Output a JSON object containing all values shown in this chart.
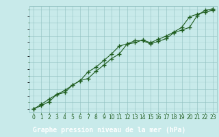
{
  "title": "Graphe pression niveau de la mer (hPa)",
  "background_color": "#c8eaea",
  "plot_bg_color": "#c8eaea",
  "footer_bg_color": "#2d6b2d",
  "footer_text_color": "#ffffff",
  "line_color": "#1e5c1e",
  "marker": "+",
  "markersize": 4,
  "markeredgewidth": 1.0,
  "linewidth": 0.8,
  "xlim": [
    -0.5,
    23.5
  ],
  "ylim": [
    1022.5,
    1038.5
  ],
  "xticks": [
    0,
    1,
    2,
    3,
    4,
    5,
    6,
    7,
    8,
    9,
    10,
    11,
    12,
    13,
    14,
    15,
    16,
    17,
    18,
    19,
    20,
    21,
    22,
    23
  ],
  "yticks": [
    1023,
    1025,
    1027,
    1029,
    1031,
    1033,
    1035,
    1037
  ],
  "series1": [
    1023.0,
    1023.5,
    1024.1,
    1025.2,
    1025.5,
    1026.6,
    1027.3,
    1027.6,
    1028.7,
    1029.6,
    1030.6,
    1031.3,
    1032.8,
    1033.3,
    1033.3,
    1032.8,
    1033.2,
    1033.6,
    1034.5,
    1034.9,
    1035.3,
    1037.1,
    1037.9,
    1038.1
  ],
  "series2": [
    1023.0,
    1023.7,
    1024.5,
    1025.2,
    1025.8,
    1026.6,
    1027.3,
    1028.6,
    1029.3,
    1030.3,
    1031.3,
    1032.5,
    1032.8,
    1033.0,
    1033.4,
    1033.0,
    1033.5,
    1034.0,
    1034.6,
    1035.3,
    1036.9,
    1037.3,
    1037.6,
    1037.9
  ],
  "grid_color": "#8fbfbf",
  "grid_alpha": 0.8,
  "tick_fontsize": 5.5,
  "title_fontsize": 7.0,
  "title_color": "#ffffff",
  "tick_color": "#1e5c1e"
}
